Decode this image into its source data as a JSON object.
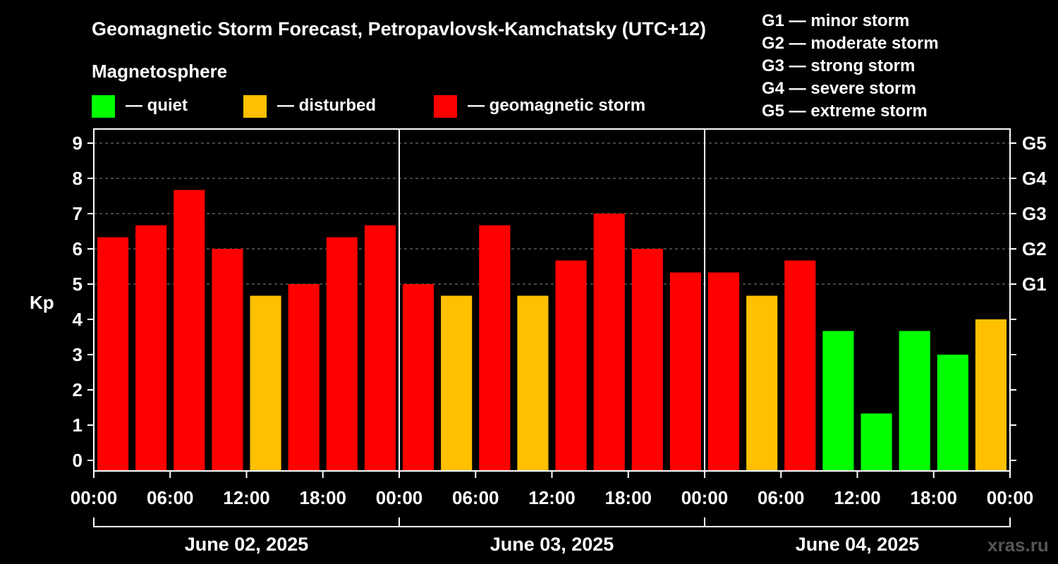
{
  "chart_data": {
    "type": "bar",
    "title": "Geomagnetic Storm Forecast, Petropavlovsk-Kamchatsky (UTC+12)",
    "ylabel": "Kp",
    "ylim": [
      -0.3,
      9.4
    ],
    "yticks": [
      "0",
      "1",
      "2",
      "3",
      "4",
      "5",
      "6",
      "7",
      "8",
      "9"
    ],
    "gscale": [
      {
        "kp": 5,
        "label": "G1"
      },
      {
        "kp": 6,
        "label": "G2"
      },
      {
        "kp": 7,
        "label": "G3"
      },
      {
        "kp": 8,
        "label": "G4"
      },
      {
        "kp": 9,
        "label": "G5"
      }
    ],
    "xticks": [
      "00:00",
      "06:00",
      "12:00",
      "18:00",
      "00:00",
      "06:00",
      "12:00",
      "18:00",
      "00:00",
      "06:00",
      "12:00",
      "18:00",
      "00:00"
    ],
    "days": [
      "June 02, 2025",
      "June 03, 2025",
      "June 04, 2025"
    ],
    "legend": {
      "heading": "Magnetosphere",
      "items": [
        {
          "label": "— quiet",
          "color": "#00ff00"
        },
        {
          "label": "— disturbed",
          "color": "#ffc000"
        },
        {
          "label": "— geomagnetic storm",
          "color": "#ff0000"
        }
      ]
    },
    "storm_scale": [
      "G1 — minor storm",
      "G2 — moderate storm",
      "G3 — strong storm",
      "G4 — severe storm",
      "G5 — extreme storm"
    ],
    "values": [
      6.33,
      6.67,
      7.67,
      6.0,
      4.67,
      5.0,
      6.33,
      6.67,
      5.0,
      4.67,
      6.67,
      4.67,
      5.67,
      7.0,
      6.0,
      5.33,
      5.33,
      4.67,
      5.67,
      3.67,
      1.33,
      3.67,
      3.0,
      4.0
    ],
    "colors": {
      "quiet": "#00ff00",
      "disturbed": "#ffc000",
      "storm": "#ff0000"
    },
    "grid": "dashed at G levels"
  },
  "watermark": "xras.ru"
}
